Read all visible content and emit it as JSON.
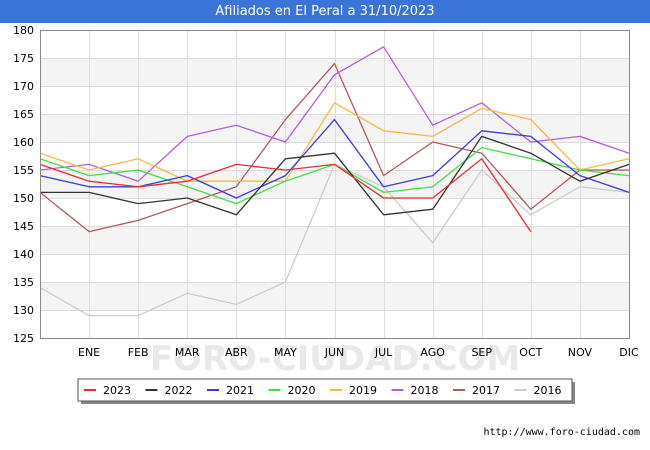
{
  "title": "Afiliados en El Peral a 31/10/2023",
  "watermark": "FORO-CIUDAD.COM",
  "footer": "http://www.foro-ciudad.com",
  "chart_data": {
    "type": "line",
    "title": "Afiliados en El Peral a 31/10/2023",
    "categories": [
      "",
      "ENE",
      "FEB",
      "MAR",
      "ABR",
      "MAY",
      "JUN",
      "JUL",
      "AGO",
      "SEP",
      "OCT",
      "NOV",
      "DIC"
    ],
    "ylim": [
      125,
      180
    ],
    "yticks": [
      125,
      130,
      135,
      140,
      145,
      150,
      155,
      160,
      165,
      170,
      175,
      180
    ],
    "grid": true,
    "legend_placement": "bottom",
    "series": [
      {
        "name": "2023",
        "color": "#e03030",
        "values": [
          156,
          153,
          152,
          153,
          156,
          155,
          156,
          150,
          150,
          157,
          144,
          null,
          null
        ]
      },
      {
        "name": "2022",
        "color": "#333333",
        "values": [
          151,
          151,
          149,
          150,
          147,
          157,
          158,
          147,
          148,
          161,
          158,
          153,
          156
        ]
      },
      {
        "name": "2021",
        "color": "#3a3ae0",
        "values": [
          154,
          152,
          152,
          154,
          150,
          154,
          164,
          152,
          154,
          162,
          161,
          154,
          151
        ]
      },
      {
        "name": "2020",
        "color": "#44dd44",
        "values": [
          157,
          154,
          155,
          152,
          149,
          153,
          156,
          151,
          152,
          159,
          157,
          155,
          154
        ]
      },
      {
        "name": "2019",
        "color": "#f5b942",
        "values": [
          158,
          155,
          157,
          153,
          153,
          153,
          167,
          162,
          161,
          166,
          164,
          155,
          157
        ]
      },
      {
        "name": "2018",
        "color": "#b15fe0",
        "values": [
          155,
          156,
          153,
          161,
          163,
          160,
          172,
          177,
          163,
          167,
          160,
          161,
          158
        ]
      },
      {
        "name": "2017",
        "color": "#b05a5a",
        "values": [
          151,
          144,
          146,
          149,
          152,
          164,
          174,
          154,
          160,
          158,
          148,
          155,
          155
        ]
      },
      {
        "name": "2016",
        "color": "#cccccc",
        "values": [
          134,
          129,
          129,
          133,
          131,
          135,
          156,
          152,
          142,
          155,
          147,
          152,
          151
        ]
      }
    ]
  }
}
